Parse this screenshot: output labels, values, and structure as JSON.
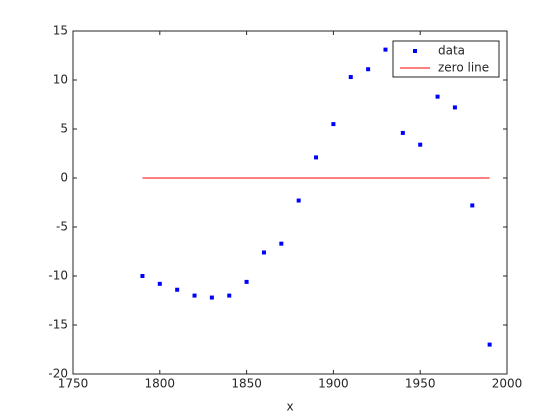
{
  "chart_data": {
    "type": "line",
    "xlabel": "x",
    "xlim": [
      1750,
      2000
    ],
    "xticks": [
      1750,
      1800,
      1850,
      1900,
      1950,
      2000
    ],
    "ylim": [
      -20,
      15
    ],
    "yticks": [
      -20,
      -15,
      -10,
      -5,
      0,
      5,
      10,
      15
    ],
    "legend": "upper right",
    "series": [
      {
        "name": "data",
        "color": "#0000ff",
        "style": "markers",
        "x": [
          1790,
          1800,
          1810,
          1820,
          1830,
          1840,
          1850,
          1860,
          1870,
          1880,
          1890,
          1900,
          1910,
          1920,
          1930,
          1940,
          1950,
          1960,
          1970,
          1980,
          1990
        ],
        "values": [
          -10.0,
          -10.8,
          -11.4,
          -12.0,
          -12.2,
          -12.0,
          -10.6,
          -7.6,
          -6.7,
          -2.3,
          2.1,
          5.5,
          10.3,
          11.1,
          13.1,
          4.6,
          3.4,
          8.3,
          7.2,
          -2.8,
          -17.0
        ]
      },
      {
        "name": "zero line",
        "color": "#ff0000",
        "style": "line",
        "x": [
          1790,
          1990
        ],
        "values": [
          0,
          0
        ]
      }
    ]
  }
}
